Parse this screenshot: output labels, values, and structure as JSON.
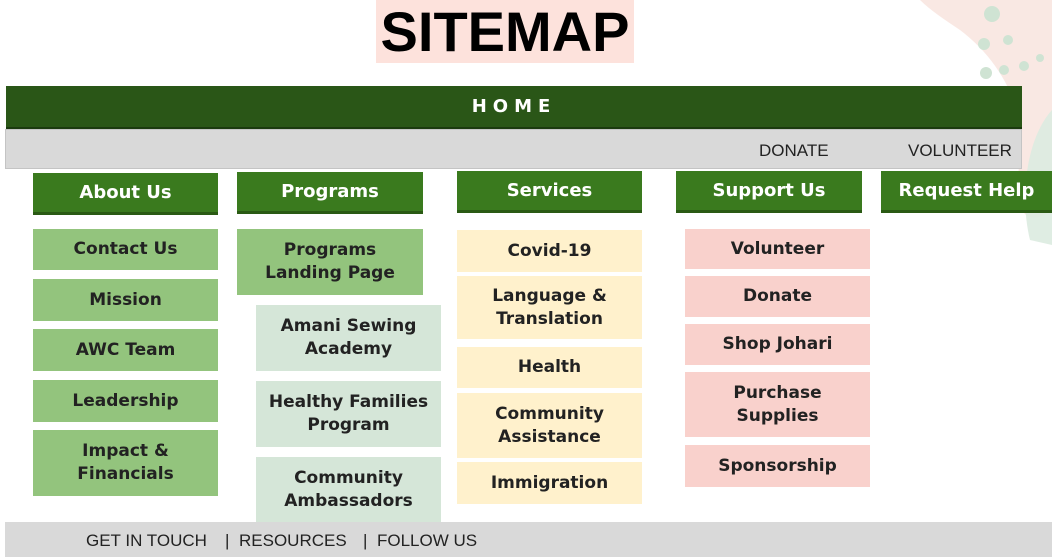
{
  "title": "SITEMAP",
  "home_label": "HOME",
  "top_links": {
    "donate": "DONATE",
    "volunteer": "VOLUNTEER"
  },
  "columns": {
    "about": {
      "header": "About Us",
      "items": [
        "Contact Us",
        "Mission",
        "AWC Team",
        "Leadership",
        "Impact & Financials"
      ]
    },
    "programs": {
      "header": "Programs",
      "landing": "Programs Landing Page",
      "items": [
        "Amani Sewing Academy",
        "Healthy Families Program",
        "Community Ambassadors"
      ]
    },
    "services": {
      "header": "Services",
      "items": [
        "Covid-19",
        "Language & Translation",
        "Health",
        "Community Assistance",
        "Immigration"
      ]
    },
    "support": {
      "header": "Support Us",
      "items": [
        "Volunteer",
        "Donate",
        "Shop Johari",
        "Purchase Supplies",
        "Sponsorship"
      ]
    },
    "request": {
      "header": "Request Help"
    }
  },
  "footer": {
    "links": [
      "GET IN TOUCH",
      "RESOURCES",
      "FOLLOW US"
    ],
    "separator": "|"
  },
  "colors": {
    "header_green": "#3a7a1e",
    "home_green": "#2a5617",
    "about_green": "#93c47d",
    "program_mint": "#d5e6d8",
    "service_yellow": "#fff1cc",
    "support_pink": "#f9d1cc",
    "title_bg": "#fde2dc",
    "bar_gray": "#d9d9d9"
  }
}
